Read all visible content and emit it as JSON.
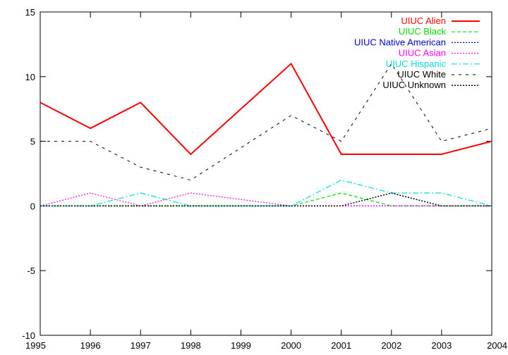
{
  "chart_data": {
    "type": "line",
    "title": "",
    "xlabel": "",
    "ylabel": "",
    "x": [
      1995,
      1996,
      1997,
      1998,
      1999,
      2000,
      2001,
      2002,
      2003,
      2004
    ],
    "xlim": [
      1995,
      2004
    ],
    "ylim": [
      -10,
      15
    ],
    "xticks": [
      1995,
      1996,
      1997,
      1998,
      1999,
      2000,
      2001,
      2002,
      2003,
      2004
    ],
    "yticks": [
      -10,
      -5,
      0,
      5,
      10,
      15
    ],
    "grid": false,
    "legend_position": "top-right",
    "series": [
      {
        "name": "UIUC Alien",
        "color": "#ff0000",
        "dash": "solid",
        "width": 2,
        "values": [
          8,
          6,
          8,
          4,
          7.5,
          11,
          4,
          4,
          4,
          5
        ]
      },
      {
        "name": "UIUC Black",
        "color": "#00dd00",
        "dash": "dashed",
        "width": 1.2,
        "values": [
          0,
          0,
          0,
          0,
          0,
          0,
          1,
          0,
          0,
          0
        ]
      },
      {
        "name": "UIUC Native American",
        "color": "#0000cc",
        "dash": "dotted",
        "width": 1.2,
        "values": [
          0,
          0,
          0,
          0,
          0,
          0,
          0,
          0,
          0,
          0
        ]
      },
      {
        "name": "UIUC Asian",
        "color": "#ff00ff",
        "dash": "dotted",
        "width": 1.2,
        "values": [
          0,
          1,
          0,
          1,
          0.5,
          0,
          0,
          0,
          0,
          0
        ]
      },
      {
        "name": "UIUC Hispanic",
        "color": "#00dddd",
        "dash": "dashdot",
        "width": 1.2,
        "values": [
          0,
          0,
          1,
          0,
          0,
          0,
          2,
          1,
          1,
          0
        ]
      },
      {
        "name": "UIUC White",
        "color": "#000000",
        "dash": "sparse",
        "width": 1,
        "values": [
          5,
          5,
          3,
          2,
          4.5,
          7,
          5,
          11,
          5,
          6
        ]
      },
      {
        "name": "UIUC Unknown",
        "color": "#000000",
        "dash": "dotted",
        "width": 1.5,
        "values": [
          0,
          0,
          0,
          0,
          0,
          0,
          0,
          1,
          0,
          0
        ]
      }
    ]
  }
}
